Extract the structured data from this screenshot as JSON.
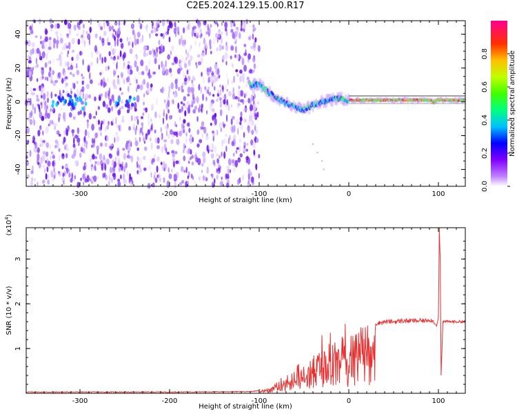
{
  "title": "C2E5.2024.129.15.00.R17",
  "chart_data": [
    {
      "type": "heatmap",
      "xlabel": "Height of straight line (km)",
      "ylabel": "Frequency (Hz)",
      "xlim": [
        -360,
        130
      ],
      "ylim": [
        -50,
        48
      ],
      "xticks": [
        -300,
        -200,
        -100,
        0,
        100
      ],
      "xtick_labels": [
        "-300",
        "-200",
        "-100",
        "0",
        "100"
      ],
      "yticks": [
        -40,
        -20,
        0,
        20,
        40
      ],
      "ytick_labels": [
        "-40",
        "-20",
        "0",
        "20",
        "40"
      ],
      "noise_region_x": [
        -360,
        -100
      ],
      "ridge": {
        "x": [
          -110,
          -100,
          -90,
          -80,
          -70,
          -60,
          -50,
          -40,
          -30,
          -20,
          -10,
          0,
          20,
          40,
          60,
          80,
          90,
          95,
          100,
          110,
          130
        ],
        "y": [
          10,
          10,
          6,
          2,
          -1,
          -3,
          -5,
          -2,
          0,
          1,
          2,
          1,
          1,
          1,
          1,
          1,
          1,
          0,
          1,
          1,
          1
        ]
      },
      "colorbar": {
        "label": "Normalized spectral amplitude",
        "range": [
          0,
          1
        ],
        "ticks": [
          0.0,
          0.2,
          0.4,
          0.6,
          0.8
        ],
        "tick_labels": [
          "0.0",
          "0.2",
          "0.4",
          "0.6",
          "0.8"
        ]
      }
    },
    {
      "type": "line",
      "xlabel": "Height of straight line (km)",
      "ylabel": "SNR (10 * v/v)",
      "scale_note": "(x10",
      "scale_exp": "4",
      "scale_close": ")",
      "xlim": [
        -360,
        130
      ],
      "ylim": [
        0,
        3.7
      ],
      "xticks": [
        -300,
        -200,
        -100,
        0,
        100
      ],
      "xtick_labels": [
        "-300",
        "-200",
        "-100",
        "0",
        "100"
      ],
      "yticks": [
        1,
        2,
        3
      ],
      "ytick_labels": [
        "1",
        "2",
        "3"
      ],
      "series": [
        {
          "color": "#e83030",
          "x": [
            -360,
            -300,
            -200,
            -110,
            -100,
            -90,
            -80,
            -70,
            -65,
            -60,
            -55,
            -50,
            -45,
            -40,
            -35,
            -30,
            -25,
            -20,
            -15,
            -10,
            -5,
            0,
            10,
            20,
            30,
            40,
            50,
            60,
            70,
            80,
            85,
            90,
            95,
            98,
            100,
            101,
            102,
            103,
            105,
            110,
            120,
            130
          ],
          "y": [
            0.02,
            0.02,
            0.02,
            0.03,
            0.05,
            0.1,
            0.2,
            0.35,
            0.4,
            0.5,
            0.55,
            0.65,
            0.75,
            0.85,
            0.95,
            1.05,
            1.1,
            1.15,
            1.2,
            1.25,
            1.3,
            1.35,
            1.45,
            1.52,
            1.56,
            1.6,
            1.6,
            1.62,
            1.62,
            1.62,
            1.62,
            1.65,
            1.6,
            1.5,
            1.7,
            3.7,
            3.0,
            0.4,
            1.6,
            1.6,
            1.6,
            1.6
          ]
        }
      ]
    }
  ]
}
